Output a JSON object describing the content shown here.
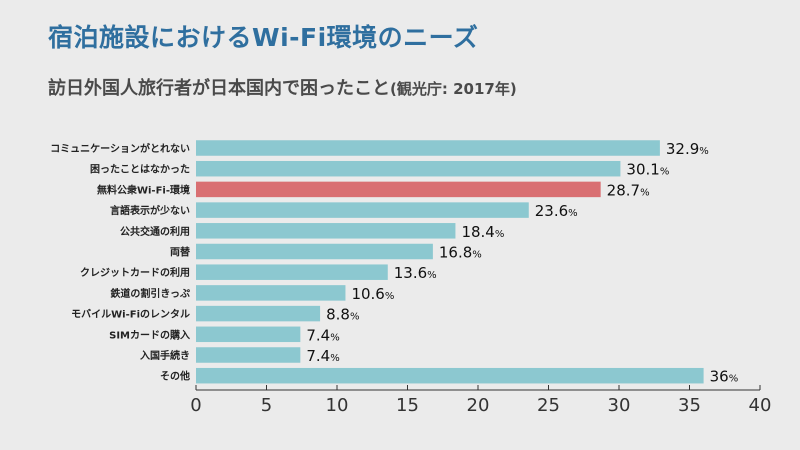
{
  "header": {
    "title": "宿泊施設におけるWi-Fi環境のニーズ",
    "subtitle": "訪日外国人旅行者が日本国内で困ったこと",
    "subtitle_note": "(観光庁: 2017年)"
  },
  "colors": {
    "bar": "#8cc8d0",
    "highlight": "#d96f72",
    "background": "#ebebeb",
    "title": "#2f6f9f",
    "axis": "#333333"
  },
  "chart_data": {
    "type": "bar",
    "orientation": "horizontal",
    "title": "訪日外国人旅行者が日本国内で困ったこと",
    "categories": [
      "コミュニケーションがとれない",
      "困ったことはなかった",
      "無料公衆Wi-Fi-環境",
      "言語表示が少ない",
      "公共交通の利用",
      "両替",
      "クレジットカードの利用",
      "鉄道の割引きっぷ",
      "モバイルWi-Fiのレンタル",
      "SIMカードの購入",
      "入国手続き",
      "その他"
    ],
    "values": [
      32.9,
      30.1,
      28.7,
      23.6,
      18.4,
      16.8,
      13.6,
      10.6,
      8.8,
      7.4,
      7.4,
      36
    ],
    "value_labels": [
      "32.9",
      "30.1",
      "28.7",
      "23.6",
      "18.4",
      "16.8",
      "13.6",
      "10.6",
      "8.8",
      "7.4",
      "7.4",
      "36"
    ],
    "unit": "%",
    "highlight_index": 2,
    "xlim": [
      0,
      40
    ],
    "xticks": [
      "0",
      "5",
      "10",
      "15",
      "20",
      "25",
      "30",
      "35",
      "40"
    ],
    "xlabel": "",
    "ylabel": "",
    "grid": false
  }
}
